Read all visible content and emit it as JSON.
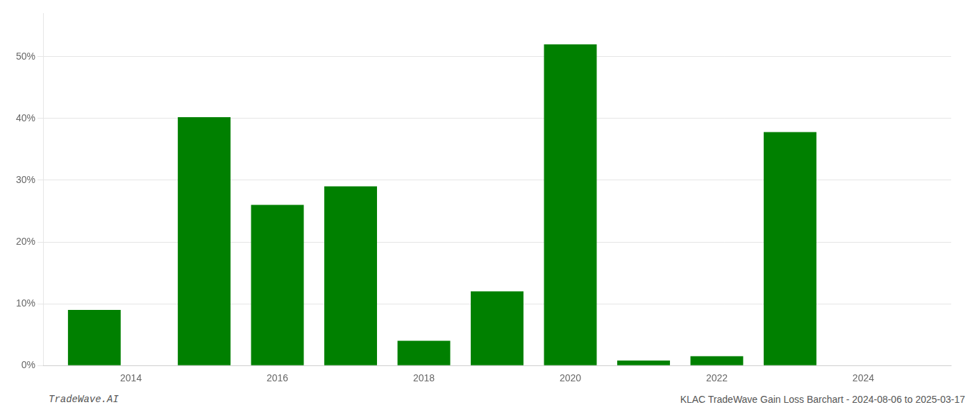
{
  "chart_data": {
    "type": "bar",
    "x": [
      2013.5,
      2015.0,
      2016.0,
      2017.0,
      2018.0,
      2019.0,
      2020.0,
      2021.0,
      2022.0,
      2023.0
    ],
    "values": [
      9.0,
      40.2,
      26.0,
      29.0,
      4.0,
      12.0,
      52.0,
      0.8,
      1.5,
      37.8
    ],
    "color": "#008000",
    "xlim": [
      2012.8,
      2025.2
    ],
    "xticks": [
      2014,
      2016,
      2018,
      2020,
      2022,
      2024
    ],
    "ylim": [
      0,
      57
    ],
    "yticks": [
      {
        "value": 0,
        "label": "0%"
      },
      {
        "value": 10,
        "label": "10%"
      },
      {
        "value": 20,
        "label": "20%"
      },
      {
        "value": 30,
        "label": "30%"
      },
      {
        "value": 40,
        "label": "40%"
      },
      {
        "value": 50,
        "label": "50%"
      }
    ],
    "grid": true,
    "annotations": [
      "TradeWave.AI",
      "KLAC TradeWave Gain Loss Barchart - 2024-08-06 to 2025-03-17"
    ]
  }
}
